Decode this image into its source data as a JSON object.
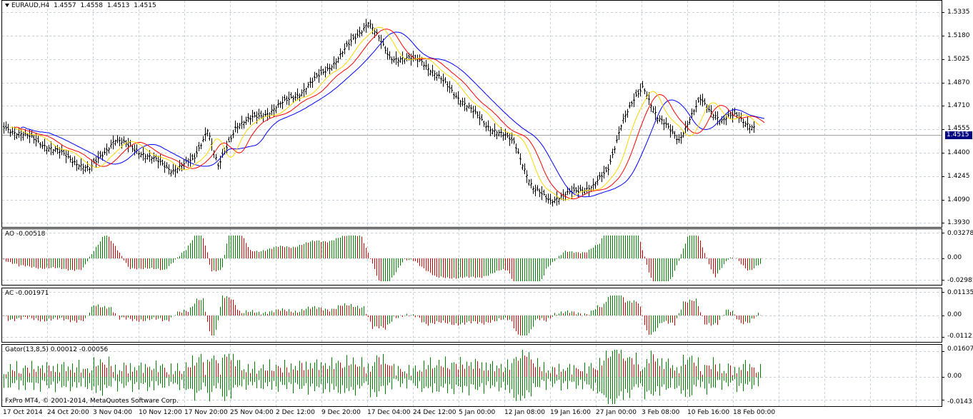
{
  "main": {
    "symbol": "EURAUD,H4",
    "open": "1.4557",
    "high": "1.4558",
    "low": "1.4513",
    "close": "1.4515",
    "current_price": "1.4515",
    "price_labels": [
      "1.5335",
      "1.5180",
      "1.5025",
      "1.4870",
      "1.4710",
      "1.4555",
      "1.4400",
      "1.4245",
      "1.4090",
      "1.3930"
    ]
  },
  "ao": {
    "label": "AO -0.00518",
    "scale": [
      "0.03278",
      "0.00",
      "-0.02985"
    ]
  },
  "ac": {
    "label": "AC -0.001971",
    "scale": [
      "0.01135",
      "0.00",
      "-0.01123"
    ]
  },
  "gator": {
    "label": "Gator(13,8,5) 0.00012 -0.00056",
    "scale": [
      "0.01607",
      "0.00",
      "-0.01433"
    ]
  },
  "copyright": "FxPro MT4, © 2001-2014, MetaQuotes Software Corp.",
  "time_labels": [
    "17 Oct 2014",
    "24 Oct 20:00",
    "3 Nov 04:00",
    "10 Nov 12:00",
    "17 Nov 20:00",
    "25 Nov 04:00",
    "2 Dec 12:00",
    "9 Dec 20:00",
    "17 Dec 04:00",
    "24 Dec 12:00",
    "5 Jan 00:00",
    "12 Jan 08:00",
    "19 Jan 16:00",
    "27 Jan 00:00",
    "3 Feb 08:00",
    "10 Feb 16:00",
    "18 Feb 00:00"
  ],
  "colors": {
    "grid": "#c8d0dc",
    "alligator_jaw": "#0000ff",
    "alligator_teeth": "#ff0000",
    "alligator_lips": "#ffd700",
    "up_bar": "#008000",
    "down_bar": "#cc0000",
    "price_tag": "#000080"
  }
}
